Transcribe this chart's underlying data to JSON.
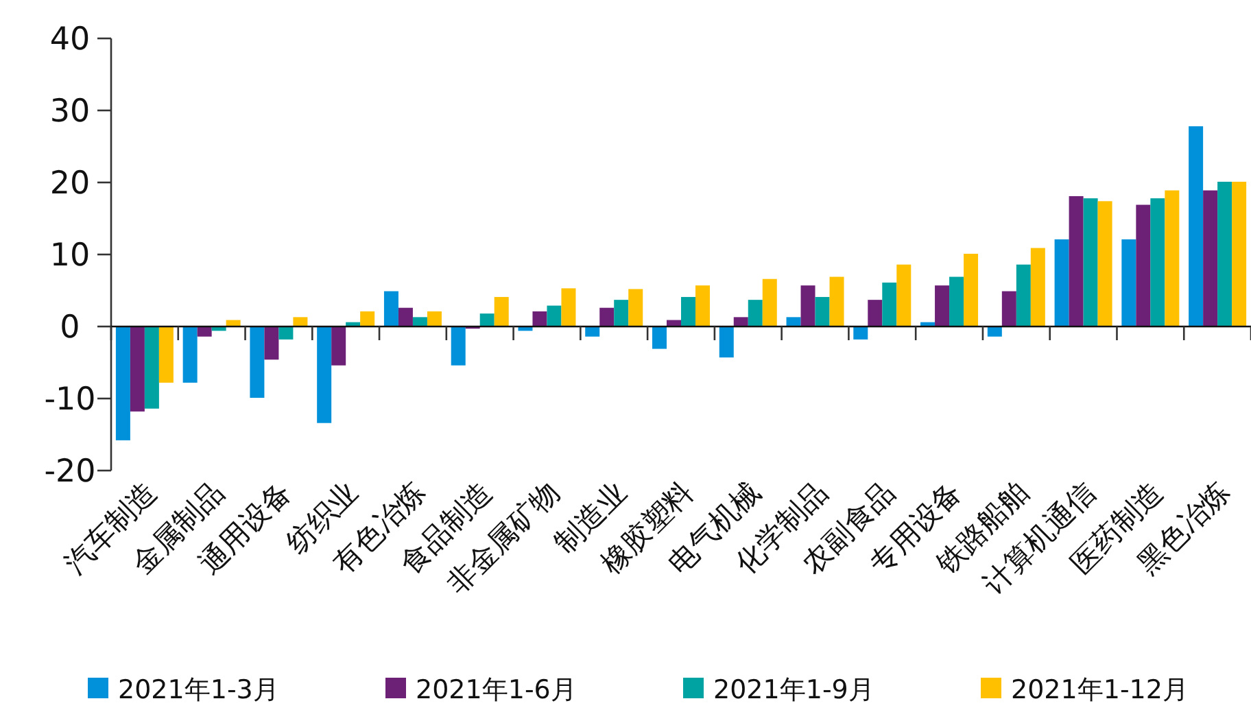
{
  "chart_data": {
    "type": "bar",
    "categories": [
      "汽车制造",
      "金属制品",
      "通用设备",
      "纺织业",
      "有色冶炼",
      "食品制造",
      "非金属矿物",
      "制造业",
      "橡胶塑料",
      "电气机械",
      "化学制品",
      "农副食品",
      "专用设备",
      "铁路船舶",
      "计算机通信",
      "医药制造",
      "黑色冶炼"
    ],
    "series": [
      {
        "name": "2021年1-3月",
        "color": "#0091da",
        "values": [
          -15.8,
          -7.8,
          -9.9,
          -13.4,
          4.9,
          -5.4,
          -0.6,
          -1.4,
          -3.1,
          -4.3,
          1.3,
          -1.8,
          0.6,
          -1.4,
          12.1,
          12.1,
          27.8
        ]
      },
      {
        "name": "2021年1-6月",
        "color": "#6c2177",
        "values": [
          -11.8,
          -1.4,
          -4.6,
          -5.4,
          2.6,
          -0.3,
          2.1,
          2.6,
          0.9,
          1.3,
          5.7,
          3.7,
          5.7,
          4.9,
          18.1,
          16.9,
          18.9
        ]
      },
      {
        "name": "2021年1-9月",
        "color": "#00a3a1",
        "values": [
          -11.4,
          -0.6,
          -1.8,
          0.6,
          1.3,
          1.8,
          2.9,
          3.7,
          4.1,
          3.7,
          4.1,
          6.1,
          6.9,
          8.6,
          17.8,
          17.8,
          20.1
        ]
      },
      {
        "name": "2021年1-12月",
        "color": "#ffc000",
        "values": [
          -7.8,
          0.9,
          1.3,
          2.1,
          2.1,
          4.1,
          5.3,
          5.2,
          5.7,
          6.6,
          6.9,
          8.6,
          10.1,
          10.9,
          17.4,
          18.9,
          20.1
        ]
      }
    ],
    "ylim": [
      -20,
      40
    ],
    "yticks": [
      {
        "value": -20,
        "label": "-20"
      },
      {
        "value": -10,
        "label": "-10"
      },
      0,
      10,
      20,
      30,
      40
    ],
    "legend": "bottom"
  }
}
